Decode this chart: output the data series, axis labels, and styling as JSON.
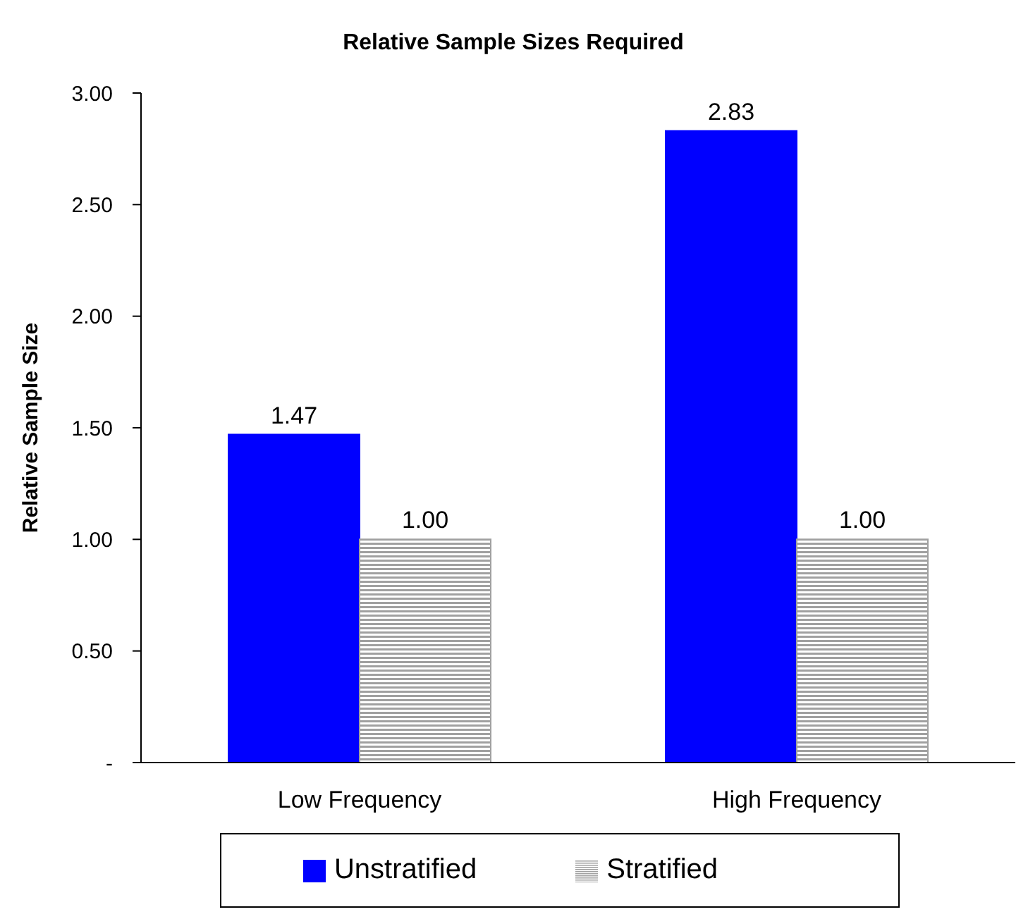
{
  "chart_data": {
    "type": "bar",
    "title": "Relative Sample Sizes Required",
    "ylabel": "Relative Sample Size",
    "categories": [
      "Low Frequency",
      "High Frequency"
    ],
    "series": [
      {
        "name": "Unstratified",
        "color": "#0000ff",
        "values": [
          1.47,
          2.83
        ],
        "value_labels": [
          "1.47",
          "2.83"
        ]
      },
      {
        "name": "Stratified",
        "color": "#a0a0a0",
        "values": [
          1.0,
          1.0
        ],
        "value_labels": [
          "1.00",
          "1.00"
        ]
      }
    ],
    "ylim": [
      0,
      3
    ],
    "yticks": [
      {
        "value": 0,
        "label": "-"
      },
      {
        "value": 0.5,
        "label": "0.50"
      },
      {
        "value": 1,
        "label": "1.00"
      },
      {
        "value": 1.5,
        "label": "1.50"
      },
      {
        "value": 2,
        "label": "2.00"
      },
      {
        "value": 2.5,
        "label": "2.50"
      },
      {
        "value": 3,
        "label": "3.00"
      }
    ],
    "grid": false,
    "legend": "bottom"
  }
}
